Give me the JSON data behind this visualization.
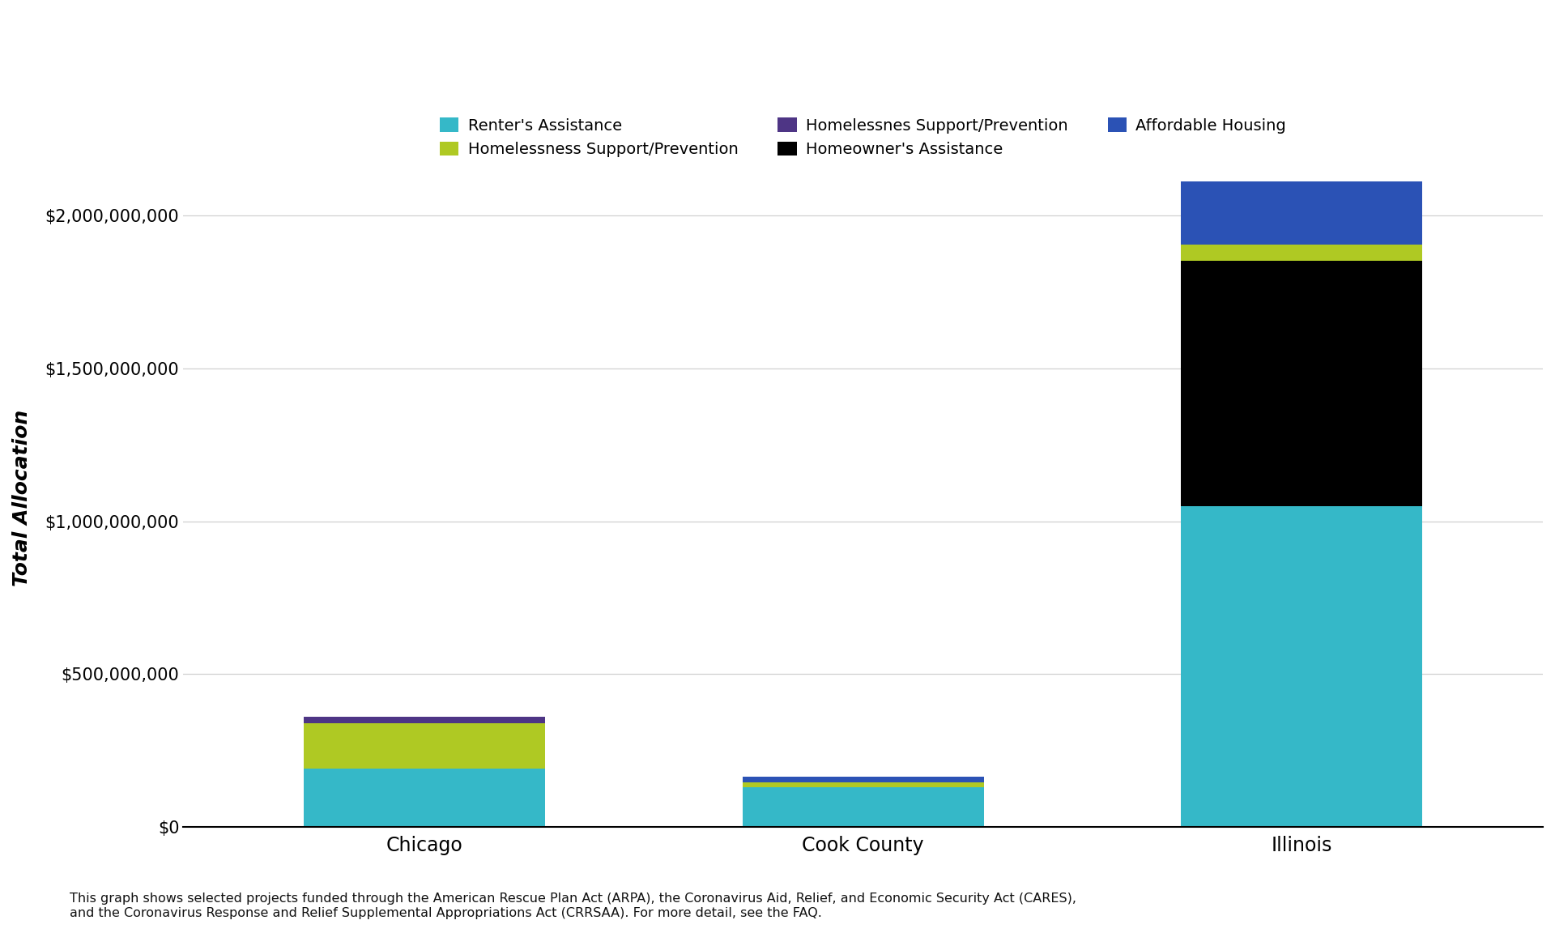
{
  "categories": [
    "Chicago",
    "Cook County",
    "Illinois"
  ],
  "series": [
    {
      "label": "Renter's Assistance",
      "color": "#35b8c8",
      "values": [
        190000000,
        130000000,
        1050000000
      ]
    },
    {
      "label": "Homeowner's Assistance",
      "color": "#000000",
      "values": [
        0,
        0,
        800000000
      ]
    },
    {
      "label": "Homelessness Support/Prevention",
      "color": "#afc923",
      "values": [
        150000000,
        15000000,
        55000000
      ]
    },
    {
      "label": "Homelessnes Support/Prevention",
      "color": "#4e3585",
      "values": [
        20000000,
        0,
        0
      ]
    },
    {
      "label": "Affordable Housing",
      "color": "#2b52b5",
      "values": [
        0,
        20000000,
        205000000
      ]
    }
  ],
  "ylabel": "Total Allocation",
  "ylim": [
    0,
    2150000000
  ],
  "yticks": [
    0,
    500000000,
    1000000000,
    1500000000,
    2000000000
  ],
  "ytick_labels": [
    "$0",
    "$500,000,000",
    "$1,000,000,000",
    "$1,500,000,000",
    "$2,000,000,000"
  ],
  "footnote": "This graph shows selected projects funded through the American Rescue Plan Act (ARPA), the Coronavirus Aid, Relief, and Economic Security Act (CARES),\nand the Coronavirus Response and Relief Supplemental Appropriations Act (CRRSAA). For more detail, see the FAQ.",
  "background_color": "#ffffff",
  "bar_width": 0.55,
  "legend_order": [
    0,
    2,
    3,
    1,
    4
  ],
  "figsize": [
    19.2,
    11.52
  ],
  "dpi": 100
}
